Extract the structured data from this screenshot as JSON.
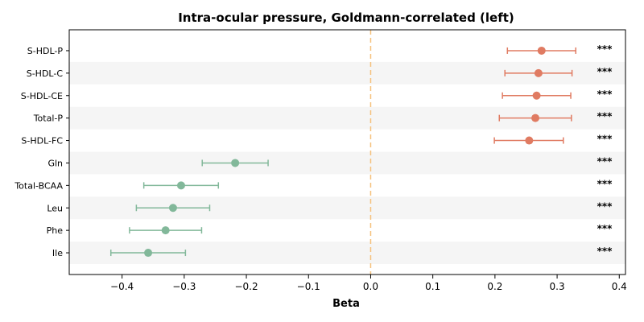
{
  "chart_data": {
    "type": "scatter",
    "title": "Intra-ocular pressure, Goldmann-correlated (left)",
    "xlabel": "Beta",
    "ylabel": "",
    "xlim": [
      -0.485,
      0.41
    ],
    "xticks": [
      -0.4,
      -0.3,
      -0.2,
      -0.1,
      0.0,
      0.1,
      0.2,
      0.3,
      0.4
    ],
    "xtick_labels": [
      "−0.4",
      "−0.3",
      "−0.2",
      "−0.1",
      "0.0",
      "0.1",
      "0.2",
      "0.3",
      "0.4"
    ],
    "reference_line": 0.0,
    "grid": false,
    "row_shading": "alternating",
    "colors": {
      "positive": "#E07B62",
      "negative": "#82B89A",
      "reference_line": "#F5C07A",
      "shade": "#F5F5F5"
    },
    "points": [
      {
        "label": "S-HDL-P",
        "beta": 0.275,
        "ci": [
          0.22,
          0.33
        ],
        "sig": "***"
      },
      {
        "label": "S-HDL-C",
        "beta": 0.27,
        "ci": [
          0.216,
          0.324
        ],
        "sig": "***"
      },
      {
        "label": "S-HDL-CE",
        "beta": 0.267,
        "ci": [
          0.212,
          0.322
        ],
        "sig": "***"
      },
      {
        "label": "Total-P",
        "beta": 0.265,
        "ci": [
          0.207,
          0.323
        ],
        "sig": "***"
      },
      {
        "label": "S-HDL-FC",
        "beta": 0.255,
        "ci": [
          0.199,
          0.31
        ],
        "sig": "***"
      },
      {
        "label": "Gln",
        "beta": -0.218,
        "ci": [
          -0.271,
          -0.165
        ],
        "sig": "***"
      },
      {
        "label": "Total-BCAA",
        "beta": -0.305,
        "ci": [
          -0.365,
          -0.245
        ],
        "sig": "***"
      },
      {
        "label": "Leu",
        "beta": -0.318,
        "ci": [
          -0.377,
          -0.259
        ],
        "sig": "***"
      },
      {
        "label": "Phe",
        "beta": -0.33,
        "ci": [
          -0.388,
          -0.272
        ],
        "sig": "***"
      },
      {
        "label": "Ile",
        "beta": -0.358,
        "ci": [
          -0.418,
          -0.298
        ],
        "sig": "***"
      }
    ]
  }
}
